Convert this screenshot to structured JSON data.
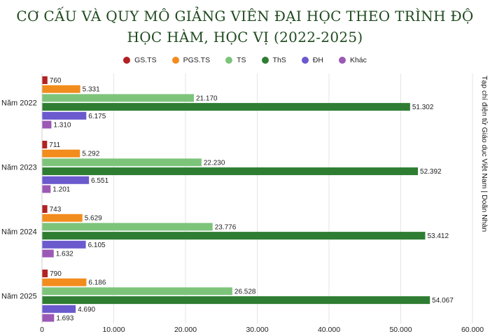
{
  "title_line1": "CƠ CẤU VÀ QUY MÔ GIẢNG VIÊN ĐẠI HỌC THEO TRÌNH ĐỘ",
  "title_line2": "HỌC HÀM, HỌC VỊ (2022-2025)",
  "source": "Tạp chí điện tử Giáo dục Việt Nam | Doãn Nhàn",
  "chart_data": {
    "type": "bar",
    "orientation": "horizontal",
    "title": "CƠ CẤU VÀ QUY MÔ GIẢNG VIÊN ĐẠI HỌC THEO TRÌNH ĐỘ HỌC HÀM, HỌC VỊ (2022-2025)",
    "categories": [
      "Năm 2022",
      "Năm 2023",
      "Năm 2024",
      "Năm 2025"
    ],
    "series": [
      {
        "name": "GS.TS",
        "color": "#b22222",
        "values": [
          760,
          711,
          743,
          790
        ],
        "labels": [
          "760",
          "711",
          "743",
          "790"
        ]
      },
      {
        "name": "PGS.TS",
        "color": "#f28c1c",
        "values": [
          5331,
          5292,
          5629,
          6186
        ],
        "labels": [
          "5.331",
          "5.292",
          "5.629",
          "6.186"
        ]
      },
      {
        "name": "TS",
        "color": "#7dc47b",
        "values": [
          21170,
          22230,
          23776,
          26528
        ],
        "labels": [
          "21.170",
          "22.230",
          "23.776",
          "26.528"
        ]
      },
      {
        "name": "ThS",
        "color": "#2e7d32",
        "values": [
          51302,
          52392,
          53412,
          54067
        ],
        "labels": [
          "51.302",
          "52.392",
          "53.412",
          "54.067"
        ]
      },
      {
        "name": "ĐH",
        "color": "#6a5acd",
        "values": [
          6175,
          6551,
          6105,
          4690
        ],
        "labels": [
          "6.175",
          "6.551",
          "6.105",
          "4.690"
        ]
      },
      {
        "name": "Khác",
        "color": "#9b59b6",
        "values": [
          1310,
          1201,
          1632,
          1693
        ],
        "labels": [
          "1.310",
          "1.201",
          "1.632",
          "1.693"
        ]
      }
    ],
    "xlim": [
      0,
      60000
    ],
    "xticks": [
      0,
      10000,
      20000,
      30000,
      40000,
      50000,
      60000
    ],
    "xtick_labels": [
      "0",
      "10.000",
      "20.000",
      "30.000",
      "40.000",
      "50.000",
      "60.000"
    ],
    "grid": true,
    "legend": "top-center"
  }
}
